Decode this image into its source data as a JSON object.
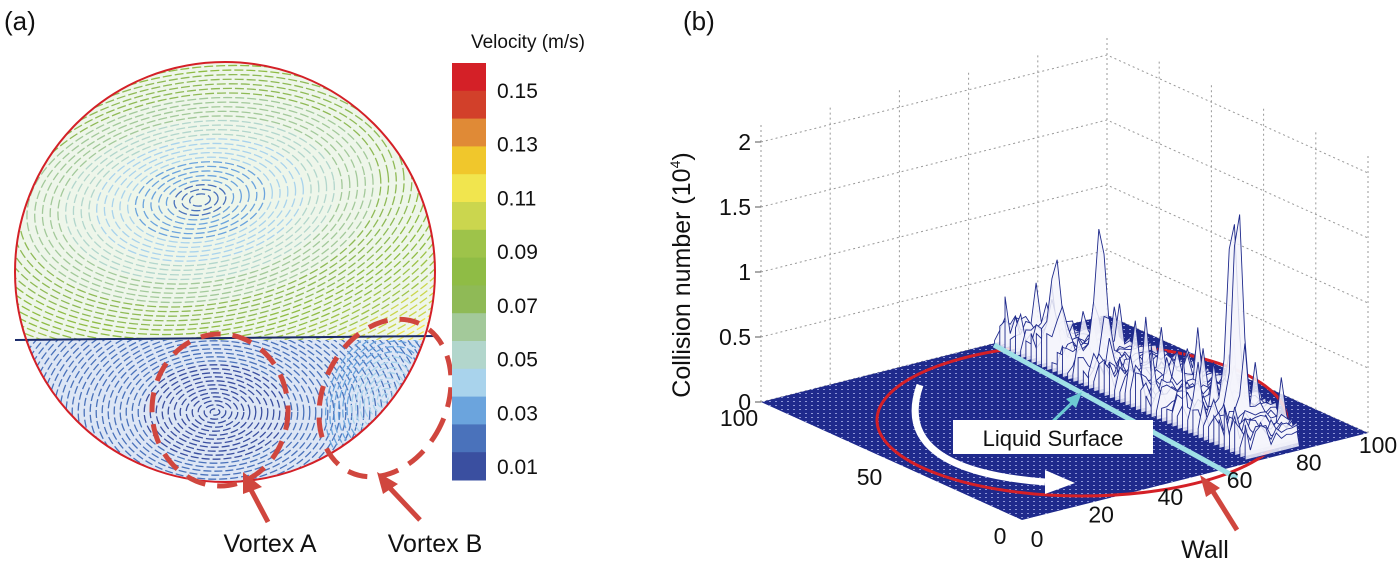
{
  "chart_data": [
    {
      "type": "heatmap",
      "panel_label": "(a)",
      "colorbar": {
        "title": "Velocity (m/s)",
        "tick_labels": [
          "0.15",
          "0.13",
          "0.11",
          "0.09",
          "0.07",
          "0.05",
          "0.03",
          "0.01"
        ],
        "range": [
          0.01,
          0.15
        ],
        "colors": [
          "#d42027",
          "#d2402a",
          "#e08a36",
          "#f0c72c",
          "#f1e54e",
          "#cbd64e",
          "#9ec34a",
          "#8fbc45",
          "#8fba56",
          "#a3c99a",
          "#b2d6cc",
          "#a9d3ec",
          "#6ba4dd",
          "#4a72bb",
          "#3a4fa0"
        ]
      },
      "annotations": [
        {
          "label": "Vortex A",
          "color": "#d0463e"
        },
        {
          "label": "Vortex B",
          "color": "#d0463e"
        }
      ]
    },
    {
      "type": "surface3d",
      "panel_label": "(b)",
      "zlabel": "Collision number (10",
      "zlabel_exp": "4",
      "zlabel_close": ")",
      "zlim": [
        0,
        2
      ],
      "z_ticks": [
        "0",
        "0.5",
        "1",
        "1.5",
        "2"
      ],
      "x_ticks": [
        "0",
        "20",
        "40",
        "60",
        "80",
        "100"
      ],
      "y_ticks": [
        "0",
        "50",
        "100"
      ],
      "grid": true,
      "surface_color": "#1f2a8c",
      "peaks": [
        {
          "x": 79,
          "y": 23,
          "z": 2.0
        },
        {
          "x": 74,
          "y": 68,
          "z": 1.05
        },
        {
          "x": 70,
          "y": 80,
          "z": 0.7
        }
      ],
      "liquid_surface_x": 66,
      "annotations": [
        {
          "label": "Liquid Surface",
          "color": "#9fe0e6"
        },
        {
          "label": "Wall",
          "color": "#d0463e"
        }
      ]
    }
  ]
}
